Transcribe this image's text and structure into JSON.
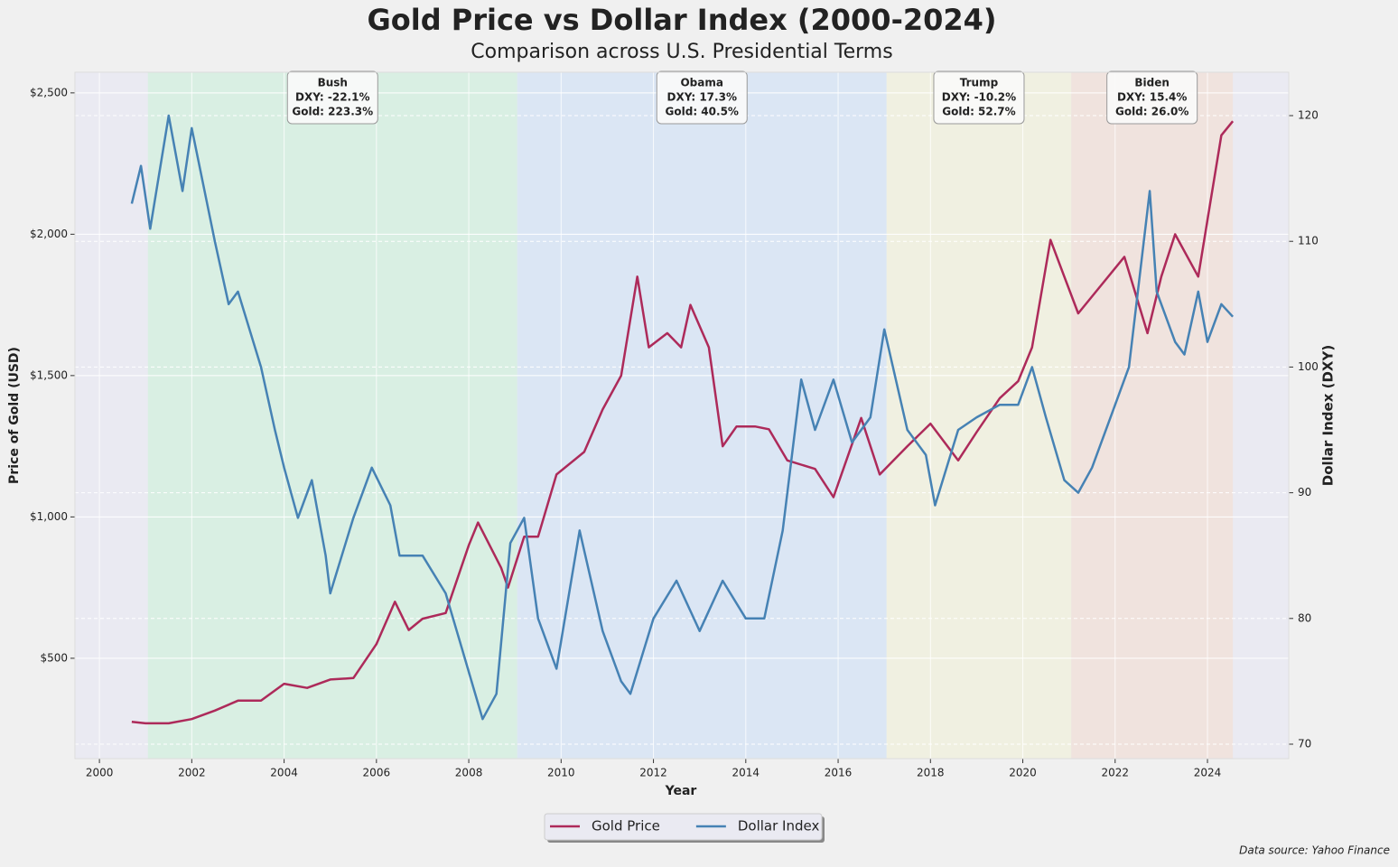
{
  "chart_data": {
    "type": "line",
    "title": "Gold Price vs Dollar Index (2000-2024)",
    "subtitle": "Comparison across U.S. Presidential Terms",
    "xlabel": "Year",
    "ylabel": "Price of Gold (USD)",
    "y2label": "Dollar Index (DXY)",
    "source": "Data source: Yahoo Finance",
    "xlim": [
      1999.47,
      2025.76
    ],
    "xticks": [
      2000,
      2002,
      2004,
      2006,
      2008,
      2010,
      2012,
      2014,
      2016,
      2018,
      2020,
      2022,
      2024
    ],
    "ylim": [
      145,
      2573
    ],
    "yticks": [
      {
        "value": 500,
        "label": "$500"
      },
      {
        "value": 1000,
        "label": "$1,000"
      },
      {
        "value": 1500,
        "label": "$1,500"
      },
      {
        "value": 2000,
        "label": "$2,000"
      },
      {
        "value": 2500,
        "label": "$2,500"
      }
    ],
    "y2lim": [
      68.85,
      123.45
    ],
    "y2ticks": [
      70,
      80,
      90,
      100,
      110,
      120
    ],
    "grid": true,
    "legend": "bottom",
    "terms": [
      {
        "name": "Bush",
        "start": 2001.05,
        "end": 2009.05,
        "color": "#d9efe3",
        "lines": [
          "DXY: -22.1%",
          "Gold: 223.3%"
        ]
      },
      {
        "name": "Obama",
        "start": 2009.05,
        "end": 2017.05,
        "color": "#dbe6f4",
        "lines": [
          "DXY: 17.3%",
          "Gold: 40.5%"
        ]
      },
      {
        "name": "Trump",
        "start": 2017.05,
        "end": 2021.05,
        "color": "#f0f0e1",
        "lines": [
          "DXY: -10.2%",
          "Gold: 52.7%"
        ]
      },
      {
        "name": "Biden",
        "start": 2021.05,
        "end": 2024.55,
        "color": "#f0e3de",
        "lines": [
          "DXY: 15.4%",
          "Gold: 26.0%"
        ]
      }
    ],
    "series": [
      {
        "name": "Gold Price",
        "color": "#ad2a5a",
        "x": [
          2000.7,
          2001.0,
          2001.5,
          2002.0,
          2002.5,
          2003.0,
          2003.5,
          2004.0,
          2004.5,
          2005.0,
          2005.5,
          2006.0,
          2006.4,
          2006.7,
          2007.0,
          2007.5,
          2008.0,
          2008.2,
          2008.7,
          2008.85,
          2009.2,
          2009.5,
          2009.9,
          2010.5,
          2010.9,
          2011.3,
          2011.65,
          2011.9,
          2012.3,
          2012.6,
          2012.8,
          2013.2,
          2013.5,
          2013.8,
          2014.2,
          2014.5,
          2014.9,
          2015.5,
          2015.9,
          2016.5,
          2016.9,
          2017.5,
          2018.0,
          2018.6,
          2019.0,
          2019.5,
          2019.9,
          2020.2,
          2020.6,
          2020.9,
          2021.2,
          2021.6,
          2022.2,
          2022.7,
          2023.0,
          2023.3,
          2023.8,
          2024.0,
          2024.3,
          2024.55
        ],
        "values": [
          275,
          270,
          270,
          285,
          315,
          350,
          350,
          410,
          395,
          425,
          430,
          550,
          700,
          600,
          640,
          660,
          900,
          980,
          820,
          750,
          930,
          930,
          1150,
          1230,
          1380,
          1500,
          1850,
          1600,
          1650,
          1600,
          1750,
          1600,
          1250,
          1320,
          1320,
          1310,
          1200,
          1170,
          1070,
          1350,
          1150,
          1250,
          1330,
          1200,
          1300,
          1420,
          1480,
          1600,
          1980,
          1850,
          1720,
          1800,
          1920,
          1650,
          1850,
          2000,
          1850,
          2050,
          2350,
          2400
        ]
      },
      {
        "name": "Dollar Index",
        "color": "#4682b4",
        "axis": "y2",
        "x": [
          2000.7,
          2000.9,
          2001.1,
          2001.5,
          2001.8,
          2002.0,
          2002.5,
          2002.8,
          2003.0,
          2003.5,
          2003.8,
          2004.0,
          2004.3,
          2004.6,
          2004.9,
          2005.0,
          2005.5,
          2005.9,
          2006.3,
          2006.5,
          2007.0,
          2007.5,
          2007.9,
          2008.3,
          2008.6,
          2008.9,
          2009.2,
          2009.5,
          2009.9,
          2010.4,
          2010.9,
          2011.3,
          2011.5,
          2012.0,
          2012.5,
          2013.0,
          2013.5,
          2014.0,
          2014.4,
          2014.8,
          2015.2,
          2015.5,
          2015.9,
          2016.3,
          2016.7,
          2017.0,
          2017.5,
          2017.9,
          2018.1,
          2018.6,
          2019.0,
          2019.5,
          2019.9,
          2020.2,
          2020.5,
          2020.9,
          2021.2,
          2021.5,
          2021.9,
          2022.3,
          2022.75,
          2022.9,
          2023.3,
          2023.5,
          2023.8,
          2024.0,
          2024.3,
          2024.55
        ],
        "values": [
          113,
          116,
          111,
          120,
          114,
          119,
          110,
          105,
          106,
          100,
          95,
          92,
          88,
          91,
          85,
          82,
          88,
          92,
          89,
          85,
          85,
          82,
          77,
          72,
          74,
          86,
          88,
          80,
          76,
          87,
          79,
          75,
          74,
          80,
          83,
          79,
          83,
          80,
          80,
          87,
          99,
          95,
          99,
          94,
          96,
          103,
          95,
          93,
          89,
          95,
          96,
          97,
          97,
          100,
          96,
          91,
          90,
          92,
          96,
          100,
          114,
          106,
          102,
          101,
          106,
          102,
          105,
          104
        ]
      }
    ]
  }
}
